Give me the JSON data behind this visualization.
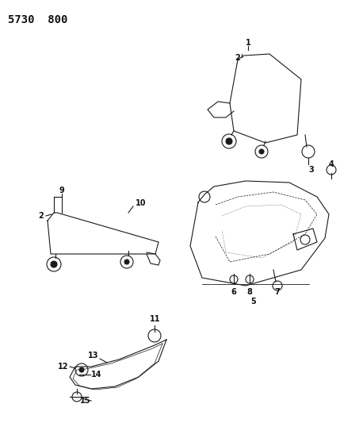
{
  "title": "5730  800",
  "background_color": "#ffffff",
  "lc": "#1a1a1a",
  "lw": 0.8,
  "title_fontsize": 10,
  "label_fontsize": 7
}
